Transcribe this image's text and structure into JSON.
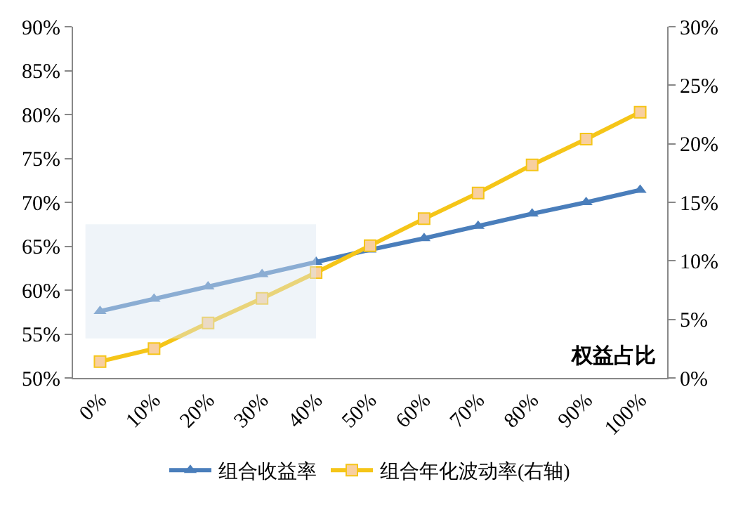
{
  "chart_data": {
    "type": "line",
    "categories": [
      "0%",
      "10%",
      "20%",
      "30%",
      "40%",
      "50%",
      "60%",
      "70%",
      "80%",
      "90%",
      "100%"
    ],
    "series": [
      {
        "name": "组合收益率",
        "color": "#4a7ebb",
        "marker": "triangle",
        "values": [
          57.6,
          59.0,
          60.4,
          61.8,
          63.2,
          64.6,
          65.9,
          67.3,
          68.7,
          70.0,
          71.4
        ]
      },
      {
        "name": "组合年化波动率(右轴)",
        "color": "#f5c518",
        "marker": "square",
        "axis": "y2",
        "values": [
          1.4,
          2.5,
          4.7,
          6.8,
          9.0,
          11.3,
          13.6,
          15.8,
          18.2,
          20.4,
          22.7
        ]
      }
    ],
    "ylim": [
      50,
      90
    ],
    "yticks": [
      {
        "value": 50,
        "label": "50%"
      },
      {
        "value": 55,
        "label": "55%"
      },
      {
        "value": 60,
        "label": "60%"
      },
      {
        "value": 65,
        "label": "65%"
      },
      {
        "value": 70,
        "label": "70%"
      },
      {
        "value": 75,
        "label": "75%"
      },
      {
        "value": 80,
        "label": "80%"
      },
      {
        "value": 85,
        "label": "85%"
      },
      {
        "value": 90,
        "label": "90%"
      }
    ],
    "y2lim": [
      0,
      30
    ],
    "y2ticks": [
      {
        "value": 0,
        "label": "0%"
      },
      {
        "value": 5,
        "label": "5%"
      },
      {
        "value": 10,
        "label": "10%"
      },
      {
        "value": 15,
        "label": "15%"
      },
      {
        "value": 20,
        "label": "20%"
      },
      {
        "value": 25,
        "label": "25%"
      },
      {
        "value": 30,
        "label": "30%"
      }
    ],
    "bands": [
      {
        "axis": "x",
        "from": "0%",
        "to": "40%",
        "color": "#dce6f1"
      }
    ],
    "annotations": [
      "权益占比"
    ],
    "legend": "bottom",
    "line_style": "solid"
  }
}
